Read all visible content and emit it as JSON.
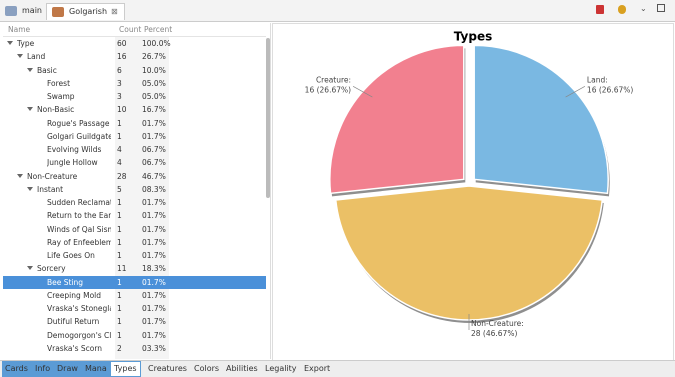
{
  "tabs": [
    "main",
    "Golgarish"
  ],
  "tree": {
    "headers": [
      "Name",
      "Count",
      "Percent"
    ],
    "rows": [
      {
        "name": "Type",
        "level": 0,
        "count": 60,
        "percent": "100.0%",
        "expanded": true
      },
      {
        "name": "Land",
        "level": 1,
        "count": 16,
        "percent": "26.7%",
        "expanded": true
      },
      {
        "name": "Basic",
        "level": 2,
        "count": 6,
        "percent": "10.0%",
        "expanded": true
      },
      {
        "name": "Forest",
        "level": 3,
        "count": 3,
        "percent": "05.0%"
      },
      {
        "name": "Swamp",
        "level": 3,
        "count": 3,
        "percent": "05.0%"
      },
      {
        "name": "Non-Basic",
        "level": 2,
        "count": 10,
        "percent": "16.7%",
        "expanded": true
      },
      {
        "name": "Rogue's Passage",
        "level": 3,
        "count": 1,
        "percent": "01.7%"
      },
      {
        "name": "Golgari Guildgate",
        "level": 3,
        "count": 1,
        "percent": "01.7%"
      },
      {
        "name": "Evolving Wilds",
        "level": 3,
        "count": 4,
        "percent": "06.7%"
      },
      {
        "name": "Jungle Hollow",
        "level": 3,
        "count": 4,
        "percent": "06.7%"
      },
      {
        "name": "Non-Creature",
        "level": 1,
        "count": 28,
        "percent": "46.7%",
        "expanded": true
      },
      {
        "name": "Instant",
        "level": 2,
        "count": 5,
        "percent": "08.3%",
        "expanded": true
      },
      {
        "name": "Sudden Reclamatio",
        "level": 3,
        "count": 1,
        "percent": "01.7%"
      },
      {
        "name": "Return to the Earth",
        "level": 3,
        "count": 1,
        "percent": "01.7%"
      },
      {
        "name": "Winds of Qal Sisma",
        "level": 3,
        "count": 1,
        "percent": "01.7%"
      },
      {
        "name": "Ray of Enfeeblemen",
        "level": 3,
        "count": 1,
        "percent": "01.7%"
      },
      {
        "name": "Life Goes On",
        "level": 3,
        "count": 1,
        "percent": "01.7%"
      },
      {
        "name": "Sorcery",
        "level": 2,
        "count": 11,
        "percent": "18.3%",
        "expanded": true
      },
      {
        "name": "Bee Sting",
        "level": 3,
        "count": 1,
        "percent": "01.7%",
        "selected": true
      },
      {
        "name": "Creeping Mold",
        "level": 3,
        "count": 1,
        "percent": "01.7%"
      },
      {
        "name": "Vraska's Stoneglare",
        "level": 3,
        "count": 1,
        "percent": "01.7%"
      },
      {
        "name": "Dutiful Return",
        "level": 3,
        "count": 1,
        "percent": "01.7%"
      },
      {
        "name": "Demogorgon's Clut",
        "level": 3,
        "count": 1,
        "percent": "01.7%"
      },
      {
        "name": "Vraska's Scorn",
        "level": 3,
        "count": 2,
        "percent": "03.3%"
      }
    ]
  },
  "pie": {
    "title": "Types",
    "slices": [
      {
        "name": "Land:",
        "value": 16,
        "value_label": "16 (26.67%)",
        "color": "#7ab8e2"
      },
      {
        "name": "Non-Creature:",
        "value": 28,
        "value_label": "28 (46.67%)",
        "color": "#ebc066"
      },
      {
        "name": "Creature:",
        "value": 16,
        "value_label": "16 (26.67%)",
        "color": "#f2808f"
      }
    ]
  },
  "bottom_tabs": {
    "left": [
      "Cards",
      "Info",
      "Draw",
      "Mana",
      "Types"
    ],
    "right": [
      "Creatures",
      "Colors",
      "Abilities",
      "Legality",
      "Export"
    ],
    "selected": "Types"
  }
}
